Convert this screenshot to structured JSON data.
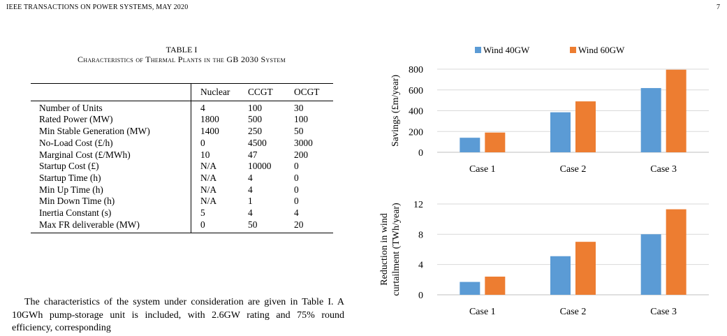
{
  "header": {
    "journal": "IEEE TRANSACTIONS ON POWER SYSTEMS, MAY 2020",
    "page": "7"
  },
  "table": {
    "number": "TABLE I",
    "caption": "Characteristics of Thermal Plants in the GB 2030 System",
    "columns": [
      "",
      "Nuclear",
      "CCGT",
      "OCGT"
    ],
    "rows": [
      [
        "Number of Units",
        "4",
        "100",
        "30"
      ],
      [
        "Rated Power (MW)",
        "1800",
        "500",
        "100"
      ],
      [
        "Min Stable Generation (MW)",
        "1400",
        "250",
        "50"
      ],
      [
        "No-Load Cost (£/h)",
        "0",
        "4500",
        "3000"
      ],
      [
        "Marginal Cost (£/MWh)",
        "10",
        "47",
        "200"
      ],
      [
        "Startup Cost (£)",
        "N/A",
        "10000",
        "0"
      ],
      [
        "Startup Time (h)",
        "N/A",
        "4",
        "0"
      ],
      [
        "Min Up Time (h)",
        "N/A",
        "4",
        "0"
      ],
      [
        "Min Down Time (h)",
        "N/A",
        "1",
        "0"
      ],
      [
        "Inertia Constant (s)",
        "5",
        "4",
        "4"
      ],
      [
        "Max FR deliverable (MW)",
        "0",
        "50",
        "20"
      ]
    ]
  },
  "body_text": "The characteristics of the system under consideration are given in Table I. A 10GWh pump-storage unit is included, with 2.6GW rating and 75% round efficiency, corresponding",
  "chart_data": [
    {
      "type": "bar",
      "categories": [
        "Case 1",
        "Case 2",
        "Case 3"
      ],
      "series": [
        {
          "name": "Wind 40GW",
          "values": [
            140,
            385,
            618
          ],
          "color": "#5b9bd5"
        },
        {
          "name": "Wind 60GW",
          "values": [
            190,
            490,
            795
          ],
          "color": "#ed7d31"
        }
      ],
      "ylabel": "Savings (£m/year)",
      "ylim": [
        0,
        800
      ],
      "yticks": [
        0,
        200,
        400,
        600,
        800
      ],
      "grid": true,
      "legend": "top"
    },
    {
      "type": "bar",
      "categories": [
        "Case 1",
        "Case 2",
        "Case 3"
      ],
      "series": [
        {
          "name": "Wind 40GW",
          "values": [
            1.7,
            5.1,
            8.0
          ],
          "color": "#5b9bd5"
        },
        {
          "name": "Wind 60GW",
          "values": [
            2.4,
            7.0,
            11.3
          ],
          "color": "#ed7d31"
        }
      ],
      "ylabel": [
        "Reduction in wind",
        "curtailment (TWh/year)"
      ],
      "ylim": [
        0,
        12
      ],
      "yticks": [
        0,
        4,
        8,
        12
      ],
      "grid": true
    }
  ]
}
